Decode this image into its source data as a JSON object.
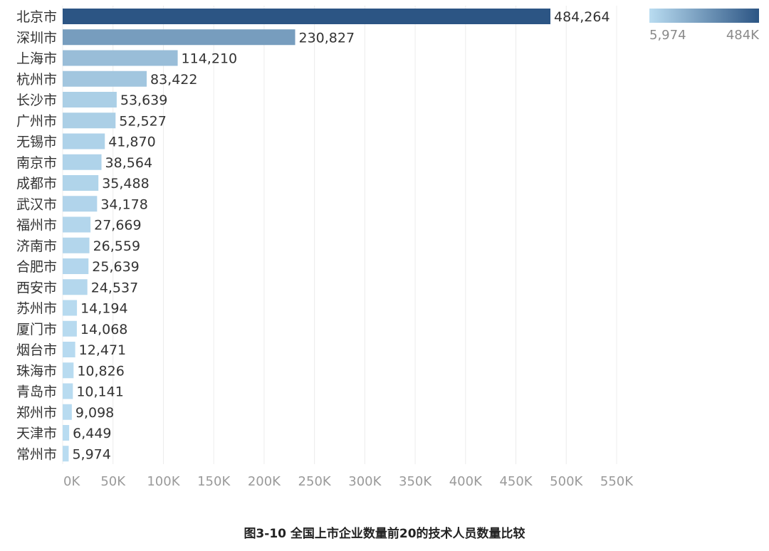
{
  "chart_data": {
    "type": "bar",
    "orientation": "horizontal",
    "categories": [
      "北京市",
      "深圳市",
      "上海市",
      "杭州市",
      "长沙市",
      "广州市",
      "无锡市",
      "南京市",
      "成都市",
      "武汉市",
      "福州市",
      "济南市",
      "合肥市",
      "西安市",
      "苏州市",
      "厦门市",
      "烟台市",
      "珠海市",
      "青岛市",
      "郑州市",
      "天津市",
      "常州市"
    ],
    "values": [
      484264,
      230827,
      114210,
      83422,
      53639,
      52527,
      41870,
      38564,
      35488,
      34178,
      27669,
      26559,
      25639,
      24537,
      14194,
      14068,
      12471,
      10826,
      10141,
      9098,
      6449,
      5974
    ],
    "value_labels": [
      "484,264",
      "230,827",
      "114,210",
      "83,422",
      "53,639",
      "52,527",
      "41,870",
      "38,564",
      "35,488",
      "34,178",
      "27,669",
      "26,559",
      "25,639",
      "24,537",
      "14,194",
      "14,068",
      "12,471",
      "10,826",
      "10,141",
      "9,098",
      "6,449",
      "5,974"
    ],
    "x_ticks": [
      "0K",
      "50K",
      "100K",
      "150K",
      "200K",
      "250K",
      "300K",
      "350K",
      "400K",
      "450K",
      "500K",
      "550K"
    ],
    "xlim": [
      0,
      550000
    ],
    "grid": true,
    "color_legend": {
      "min_label": "5,974",
      "max_label": "484K",
      "min_value": 5974,
      "max_value": 484264,
      "position": "top-right"
    },
    "colors": {
      "low": "#b9dcf1",
      "high": "#2c5584"
    },
    "title": ""
  },
  "caption": "图3-10 全国上市企业数量前20的技术人员数量比较"
}
